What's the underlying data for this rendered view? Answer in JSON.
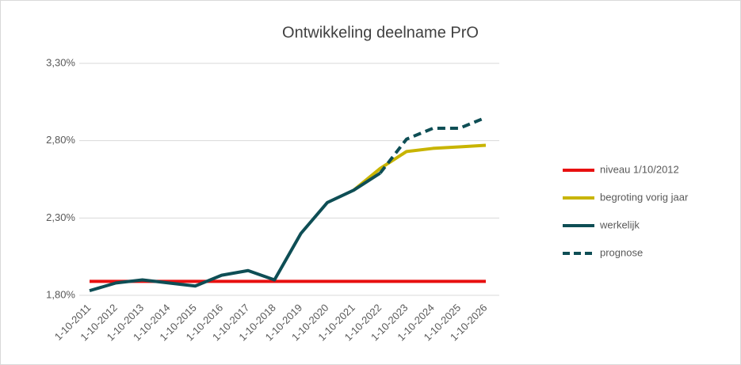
{
  "chart_data": {
    "type": "line",
    "title": "Ontwikkeling deelname PrO",
    "categories": [
      "1-10-2011",
      "1-10-2012",
      "1-10-2013",
      "1-10-2014",
      "1-10-2015",
      "1-10-2016",
      "1-10-2017",
      "1-10-2018",
      "1-10-2019",
      "1-10-2020",
      "1-10-2021",
      "1-10-2022",
      "1-10-2023",
      "1-10-2024",
      "1-10-2025",
      "1-10-2026"
    ],
    "series": [
      {
        "name": "niveau 1/10/2012",
        "color": "#e81010",
        "dashed": false,
        "values": [
          1.89,
          1.89,
          1.89,
          1.89,
          1.89,
          1.89,
          1.89,
          1.89,
          1.89,
          1.89,
          1.89,
          1.89,
          1.89,
          1.89,
          1.89,
          1.89
        ]
      },
      {
        "name": "begroting vorig jaar",
        "color": "#c8b400",
        "dashed": false,
        "values": [
          null,
          null,
          null,
          null,
          null,
          null,
          null,
          null,
          null,
          null,
          2.48,
          2.62,
          2.73,
          2.75,
          2.76,
          2.77
        ]
      },
      {
        "name": "werkelijk",
        "color": "#0e4e55",
        "dashed": false,
        "values": [
          1.83,
          1.88,
          1.9,
          1.88,
          1.86,
          1.93,
          1.96,
          1.9,
          2.2,
          2.4,
          2.48,
          2.59,
          null,
          null,
          null,
          null
        ]
      },
      {
        "name": "prognose",
        "color": "#0e4e55",
        "dashed": true,
        "values": [
          null,
          null,
          null,
          null,
          null,
          null,
          null,
          null,
          null,
          null,
          null,
          2.59,
          2.81,
          2.88,
          2.88,
          2.95
        ]
      }
    ],
    "ylim": [
      1.8,
      3.3
    ],
    "yticks": [
      {
        "value": 1.8,
        "label": "1,80%"
      },
      {
        "value": 2.3,
        "label": "2,30%"
      },
      {
        "value": 2.8,
        "label": "2,80%"
      },
      {
        "value": 3.3,
        "label": "3,30%"
      }
    ],
    "grid": true,
    "legend": "right"
  }
}
